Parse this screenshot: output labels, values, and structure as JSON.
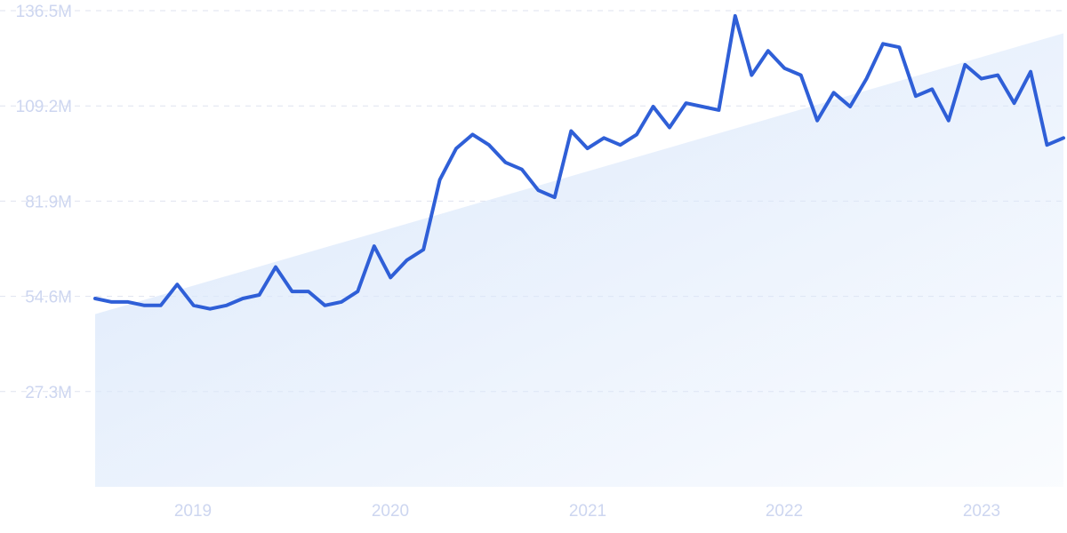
{
  "chart_data": {
    "type": "line",
    "title": "",
    "xlabel": "",
    "ylabel": "",
    "y_tick_labels": [
      "27.3M",
      "54.6M",
      "81.9M",
      "109.2M",
      "136.5M"
    ],
    "y_tick_values": [
      27.3,
      54.6,
      81.9,
      109.2,
      136.5
    ],
    "x_tick_labels": [
      "2019",
      "2020",
      "2021",
      "2022",
      "2023"
    ],
    "ylim": [
      0,
      136.5
    ],
    "grid": true,
    "colors": {
      "line": "#2f5fd7",
      "trend_fill": "#dbe8fb",
      "tick_text": "#cdd6f0",
      "grid": "#dfe3ef"
    },
    "series": [
      {
        "values": [
          54.0,
          53.0,
          53.0,
          52.0,
          52.0,
          58.0,
          52.0,
          51.0,
          52.0,
          54.0,
          55.0,
          63.0,
          56.0,
          56.0,
          52.0,
          53.0,
          56.0,
          69.0,
          60.0,
          65.0,
          68.0,
          88.0,
          97.0,
          101.0,
          98.0,
          93.0,
          91.0,
          85.0,
          83.0,
          102.0,
          97.0,
          100.0,
          98.0,
          101.0,
          109.0,
          103.0,
          110.0,
          109.0,
          108.0,
          135.0,
          118.0,
          125.0,
          120.0,
          118.0,
          105.0,
          113.0,
          109.0,
          117.0,
          127.0,
          126.0,
          112.0,
          114.0,
          105.0,
          121.0,
          117.0,
          118.0,
          110.0,
          119.0,
          98.0,
          100.0
        ]
      }
    ],
    "trend_start": 49.5,
    "trend_end": 130.0
  }
}
